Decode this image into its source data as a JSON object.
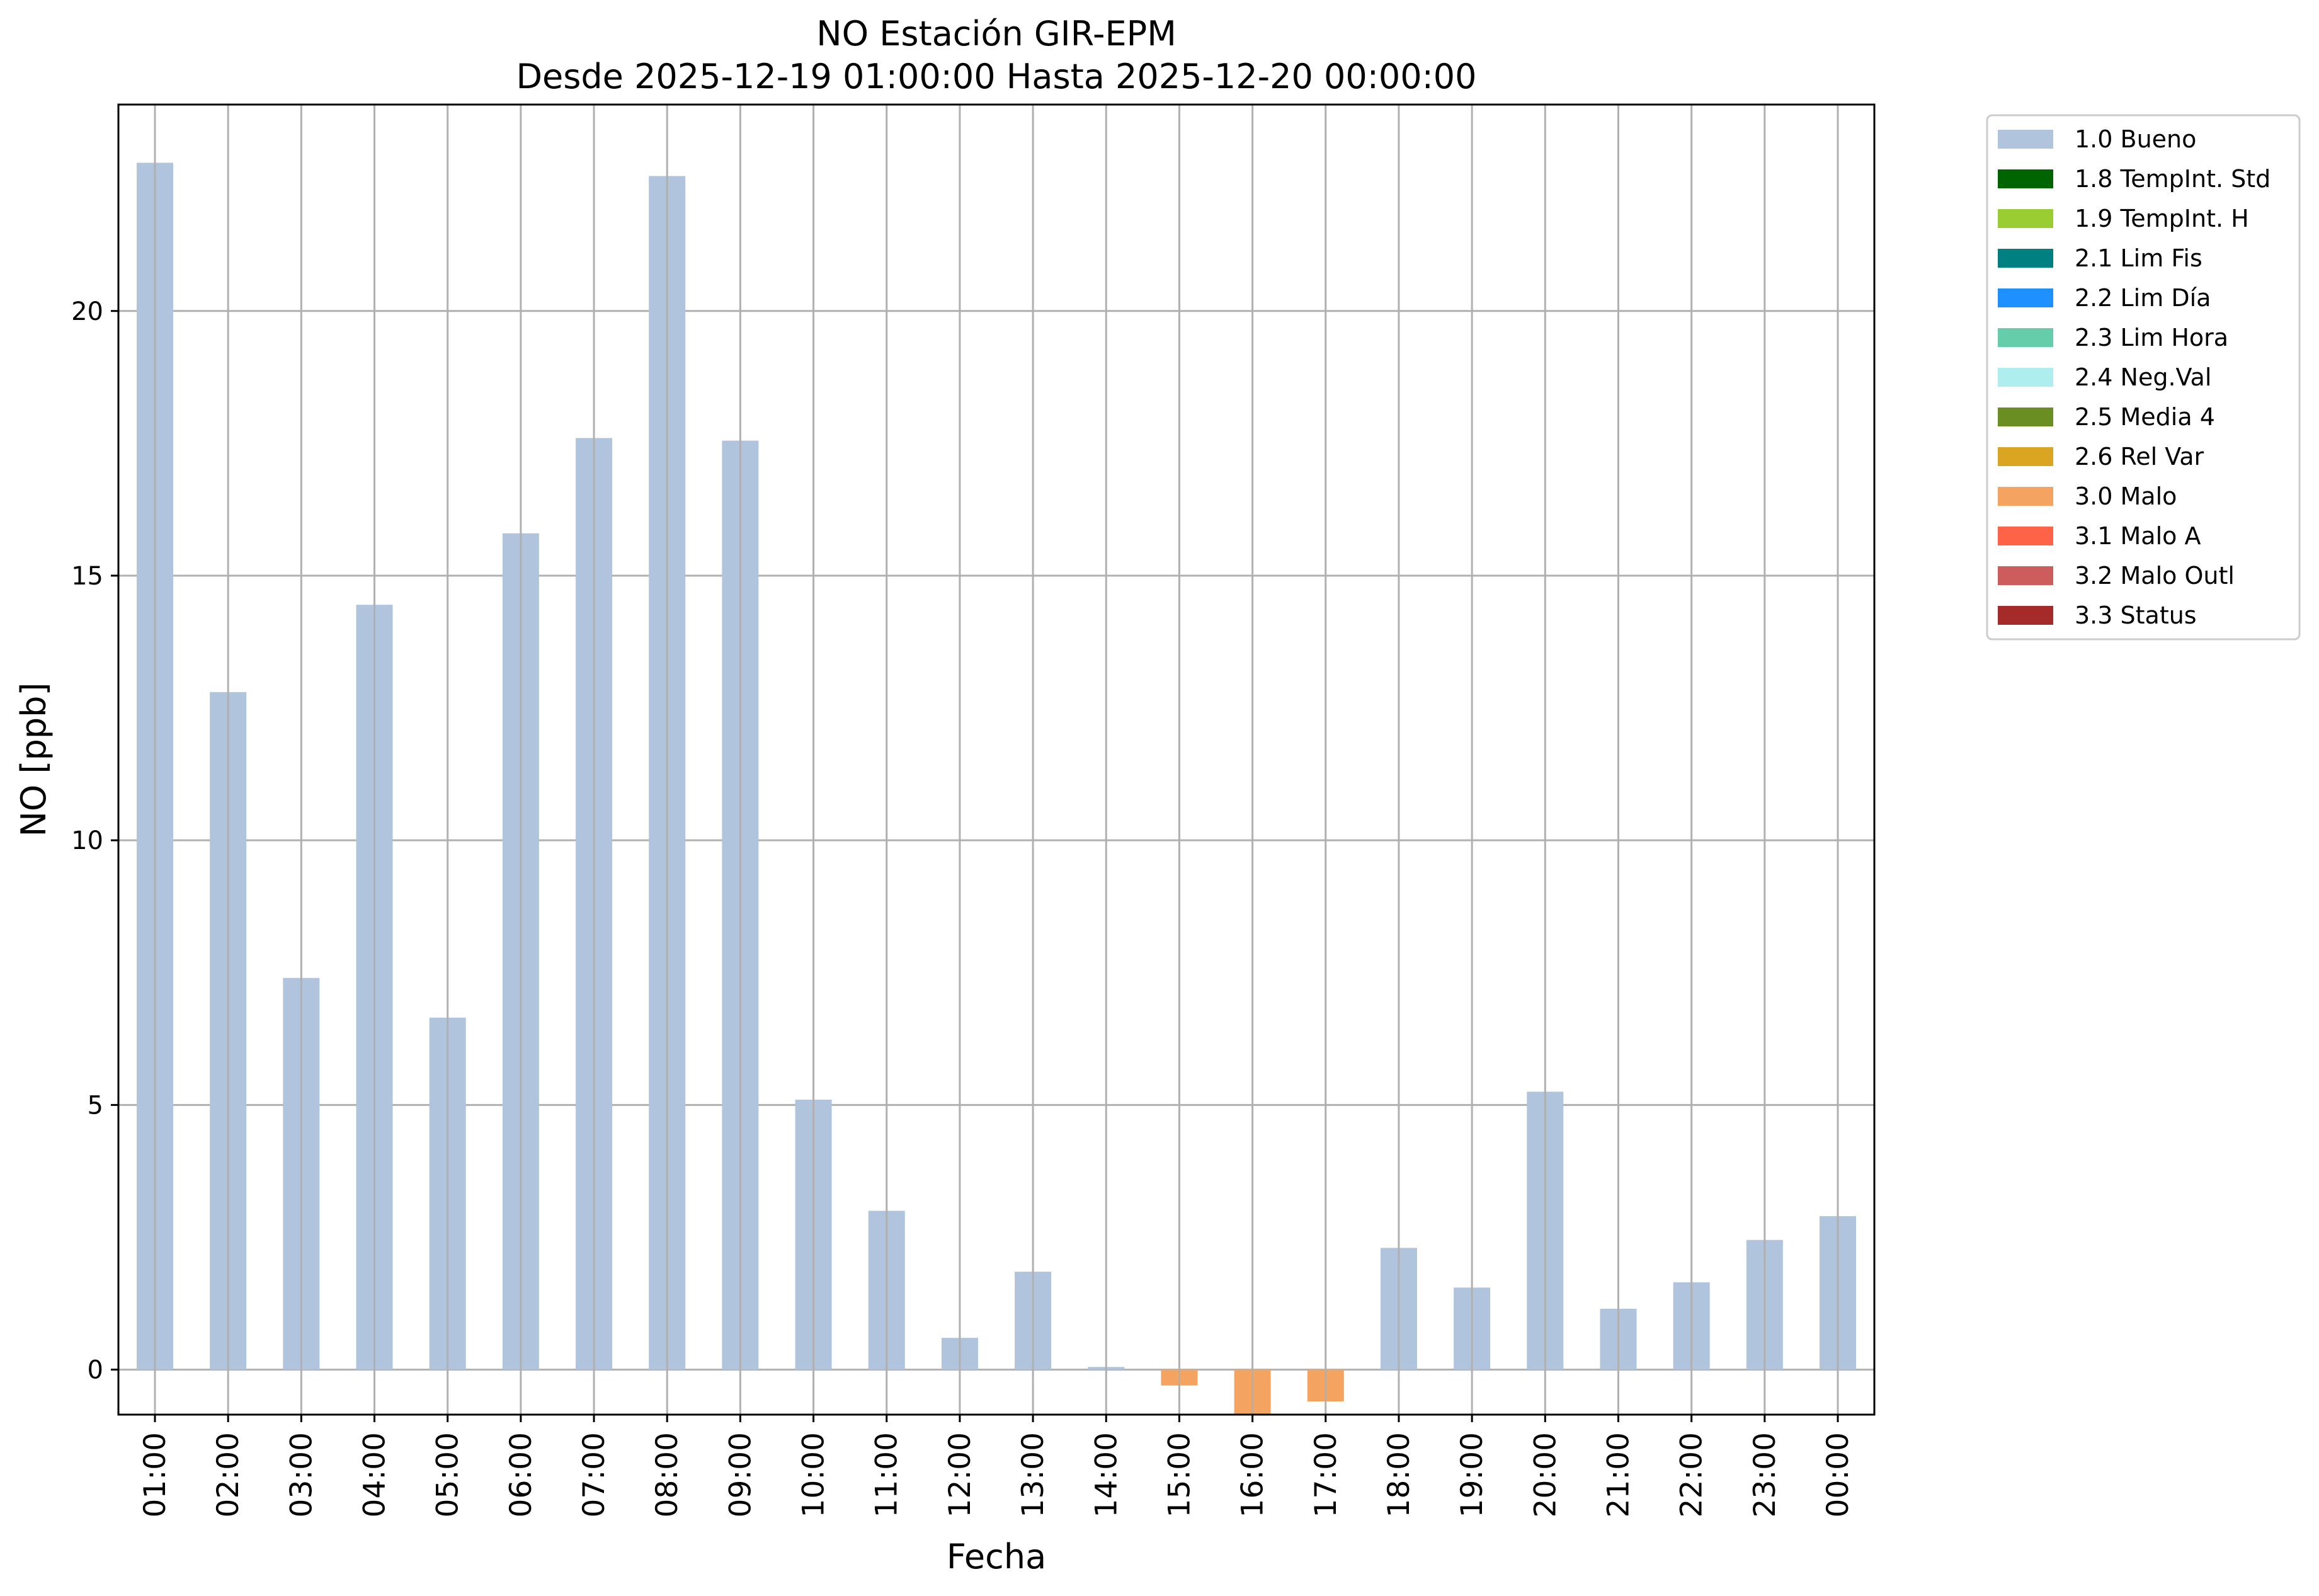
{
  "chart_data": {
    "type": "bar",
    "title": "NO Estación GIR-EPM",
    "subtitle": "Desde 2025-12-19 01:00:00 Hasta 2025-12-20 00:00:00",
    "xlabel": "Fecha",
    "ylabel": "NO [ppb]",
    "ylim": [
      -0.85,
      23.9
    ],
    "yticks": [
      0,
      5,
      10,
      15,
      20
    ],
    "grid": true,
    "legend_position": "outside-top-right",
    "categories": [
      "01:00",
      "02:00",
      "03:00",
      "04:00",
      "05:00",
      "06:00",
      "07:00",
      "08:00",
      "09:00",
      "10:00",
      "11:00",
      "12:00",
      "13:00",
      "14:00",
      "15:00",
      "16:00",
      "17:00",
      "18:00",
      "19:00",
      "20:00",
      "21:00",
      "22:00",
      "23:00",
      "00:00"
    ],
    "values": [
      22.8,
      12.8,
      7.4,
      14.45,
      6.65,
      15.8,
      17.6,
      22.55,
      17.55,
      5.1,
      3.0,
      0.6,
      1.85,
      0.05,
      -0.3,
      -0.85,
      -0.6,
      2.3,
      1.55,
      5.25,
      1.15,
      1.65,
      2.45,
      2.9
    ],
    "flags": [
      "1.0 Bueno",
      "1.0 Bueno",
      "1.0 Bueno",
      "1.0 Bueno",
      "1.0 Bueno",
      "1.0 Bueno",
      "1.0 Bueno",
      "1.0 Bueno",
      "1.0 Bueno",
      "1.0 Bueno",
      "1.0 Bueno",
      "1.0 Bueno",
      "1.0 Bueno",
      "1.0 Bueno",
      "3.0 Malo",
      "3.0 Malo",
      "3.0 Malo",
      "1.0 Bueno",
      "1.0 Bueno",
      "1.0 Bueno",
      "1.0 Bueno",
      "1.0 Bueno",
      "1.0 Bueno",
      "1.0 Bueno"
    ],
    "legend": [
      {
        "label": "1.0 Bueno",
        "color": "#b0c4de"
      },
      {
        "label": "1.8 TempInt. Std",
        "color": "#006400"
      },
      {
        "label": "1.9 TempInt. H",
        "color": "#9acd32"
      },
      {
        "label": "2.1 Lim Fis",
        "color": "#008080"
      },
      {
        "label": "2.2 Lim Día",
        "color": "#1e90ff"
      },
      {
        "label": "2.3 Lim Hora",
        "color": "#66cdaa"
      },
      {
        "label": "2.4 Neg.Val",
        "color": "#afeeee"
      },
      {
        "label": "2.5 Media 4",
        "color": "#6b8e23"
      },
      {
        "label": "2.6 Rel Var",
        "color": "#daa520"
      },
      {
        "label": "3.0 Malo",
        "color": "#f4a460"
      },
      {
        "label": "3.1 Malo A",
        "color": "#ff6347"
      },
      {
        "label": "3.2 Malo Outl",
        "color": "#cd5c5c"
      },
      {
        "label": "3.3 Status",
        "color": "#a52a2a"
      }
    ]
  }
}
